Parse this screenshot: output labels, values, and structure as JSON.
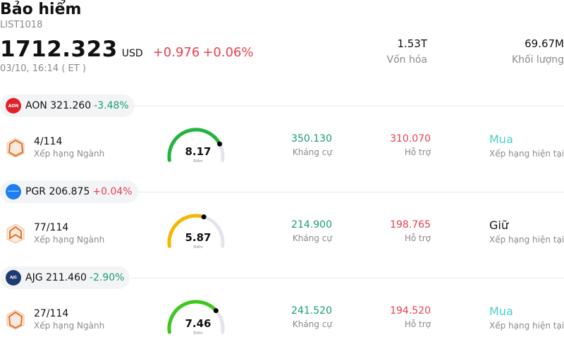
{
  "header": {
    "title": "Bảo hiểm",
    "code": "LIST1018",
    "price": "1712.323",
    "currency": "USD",
    "change": "+0.976",
    "change_pct": "+0.06%",
    "time": "03/10, 16:14  ( ET )",
    "market_cap": {
      "value": "1.53T",
      "label": "Vốn hóa"
    },
    "volume": {
      "value": "69.67M",
      "label": "Khối lượng"
    }
  },
  "colors": {
    "up": "#e8404d",
    "down": "#1a9b77",
    "buy": "#4ccfc9",
    "hold": "#111111"
  },
  "stocks": [
    {
      "ticker_price": "AON 321.260",
      "change_pct": "-3.48%",
      "change_color": "#1a9b77",
      "logo_text": "AON",
      "logo_color": "#e2202a",
      "rank": "4/114",
      "rank_label": "Xếp hạng Ngành",
      "score": "8.17",
      "score_value": 8.17,
      "score_label": "Điểm",
      "gauge_color": "#22b53e",
      "resistance": "350.130",
      "resistance_label": "Kháng cự",
      "support": "310.070",
      "support_label": "Hỗ trợ",
      "rating": "Mua",
      "rating_color": "#4ccfc9",
      "rating_label": "Xếp hạng hiện tại"
    },
    {
      "ticker_price": "PGR 206.875",
      "change_pct": "+0.04%",
      "change_color": "#e8404d",
      "logo_text": "PROGRESSIVE",
      "logo_color": "#1d7ff0",
      "rank": "77/114",
      "rank_label": "Xếp hạng Ngành",
      "score": "5.87",
      "score_value": 5.87,
      "score_label": "Điểm",
      "gauge_color": "#f5b800",
      "resistance": "214.900",
      "resistance_label": "Kháng cự",
      "support": "198.765",
      "support_label": "Hỗ trợ",
      "rating": "Giữ",
      "rating_color": "#111111",
      "rating_label": "Xếp hạng hiện tại"
    },
    {
      "ticker_price": "AJG 211.460",
      "change_pct": "-2.90%",
      "change_color": "#1a9b77",
      "logo_text": "AJG",
      "logo_color": "#1e3c72",
      "rank": "27/114",
      "rank_label": "Xếp hạng Ngành",
      "score": "7.46",
      "score_value": 7.46,
      "score_label": "Điểm",
      "gauge_color": "#3ec81e",
      "resistance": "241.520",
      "resistance_label": "Kháng cự",
      "support": "194.520",
      "support_label": "Hỗ trợ",
      "rating": "Mua",
      "rating_color": "#4ccfc9",
      "rating_label": "Xếp hạng hiện tại"
    }
  ]
}
